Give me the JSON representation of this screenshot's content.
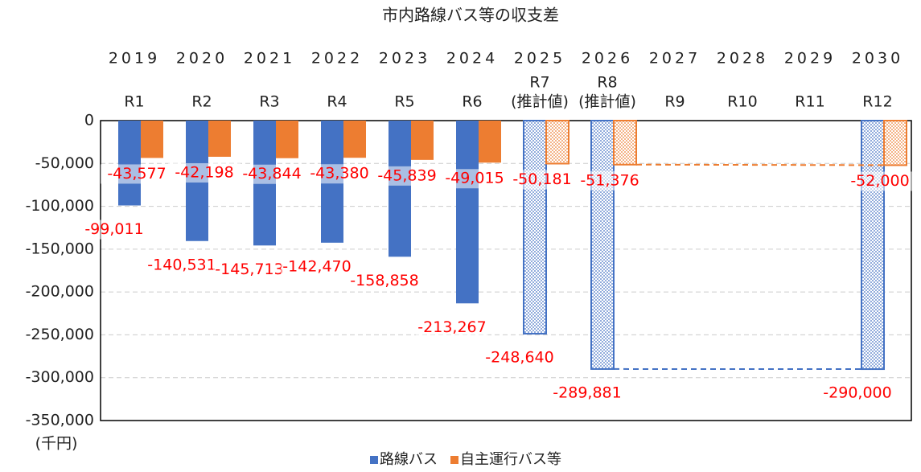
{
  "chart_data": {
    "type": "bar",
    "title": "市内路線バス等の収支差",
    "categories": [
      "2019",
      "2020",
      "2021",
      "2022",
      "2023",
      "2024",
      "2025",
      "2026",
      "2027",
      "2028",
      "2029",
      "2030"
    ],
    "era_labels": [
      [
        "R1"
      ],
      [
        "R2"
      ],
      [
        "R3"
      ],
      [
        "R4"
      ],
      [
        "R5"
      ],
      [
        "R6"
      ],
      [
        "R7",
        "(推計値)"
      ],
      [
        "R8",
        "(推計値)"
      ],
      [
        "R9"
      ],
      [
        "R10"
      ],
      [
        "R11"
      ],
      [
        "R12"
      ]
    ],
    "estimated": [
      false,
      false,
      false,
      false,
      false,
      false,
      true,
      true,
      false,
      false,
      false,
      true
    ],
    "series": [
      {
        "name": "路線バス",
        "color": "#4472c4",
        "values": [
          -99011,
          -140531,
          -145713,
          -142470,
          -158858,
          -213267,
          -248640,
          -289881,
          null,
          null,
          null,
          -290000
        ],
        "value_labels": [
          "-99,011",
          "-140,531",
          "-145,713",
          "-142,470",
          "-158,858",
          "-213,267",
          "-248,640",
          "-289,881",
          null,
          null,
          null,
          "-290,000"
        ]
      },
      {
        "name": "自主運行バス等",
        "color": "#ed7d31",
        "values": [
          -43577,
          -42198,
          -43844,
          -43380,
          -45839,
          -49015,
          -50181,
          -51376,
          null,
          null,
          null,
          -52000
        ],
        "value_labels": [
          "-43,577",
          "-42,198",
          "-43,844",
          "-43,380",
          "-45,839",
          "-49,015",
          "-50,181",
          "-51,376",
          null,
          null,
          null,
          "-52,000"
        ]
      }
    ],
    "ylim": [
      -350000,
      0
    ],
    "yticks": [
      0,
      {
        "value": -50000,
        "label": "-50,000"
      },
      {
        "value": -100000,
        "label": "-100,000"
      },
      {
        "value": -150000,
        "label": "-150,000"
      },
      {
        "value": -200000,
        "label": "-200,000"
      },
      {
        "value": -250000,
        "label": "-250,000"
      },
      {
        "value": -300000,
        "label": "-300,000"
      },
      {
        "value": -350000,
        "label": "-350,000"
      }
    ],
    "unit_label": "(千円)",
    "grid": true,
    "legend": "bottom",
    "label_color": "#ff0000"
  }
}
